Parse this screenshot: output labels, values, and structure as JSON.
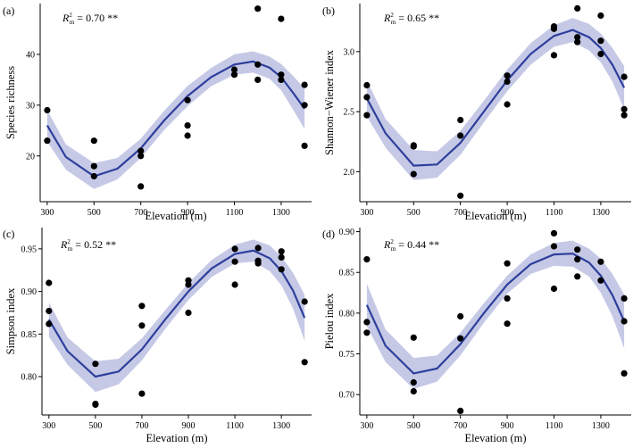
{
  "chart_data": [
    {
      "type": "scatter",
      "panel": "(a)",
      "stat": {
        "symbol": "R",
        "sup": "2",
        "sub": "m",
        "text": " = 0.70 **"
      },
      "xlabel": "Elevation (m)",
      "ylabel": "Species richness",
      "xlim": [
        270,
        1430
      ],
      "ylim": [
        11,
        50
      ],
      "xticks": [
        300,
        500,
        700,
        900,
        1100,
        1300
      ],
      "yticks": [
        20,
        30,
        40
      ],
      "points": [
        [
          300,
          29
        ],
        [
          300,
          23
        ],
        [
          500,
          23
        ],
        [
          500,
          18
        ],
        [
          500,
          16
        ],
        [
          700,
          21
        ],
        [
          700,
          20
        ],
        [
          700,
          14
        ],
        [
          900,
          31
        ],
        [
          900,
          26
        ],
        [
          900,
          24
        ],
        [
          1100,
          37
        ],
        [
          1100,
          36
        ],
        [
          1200,
          49
        ],
        [
          1200,
          38
        ],
        [
          1200,
          35
        ],
        [
          1300,
          47
        ],
        [
          1300,
          36
        ],
        [
          1300,
          35
        ],
        [
          1400,
          34
        ],
        [
          1400,
          30
        ],
        [
          1400,
          22
        ]
      ],
      "fit": [
        [
          300,
          26.0
        ],
        [
          380,
          19.8
        ],
        [
          500,
          16.0
        ],
        [
          600,
          17.5
        ],
        [
          700,
          21.5
        ],
        [
          800,
          27
        ],
        [
          900,
          31.8
        ],
        [
          1000,
          35.5
        ],
        [
          1100,
          38
        ],
        [
          1180,
          38.6
        ],
        [
          1250,
          37.4
        ],
        [
          1300,
          35.5
        ],
        [
          1350,
          32.5
        ],
        [
          1400,
          29.3
        ]
      ],
      "band_upper": [
        [
          300,
          29.0
        ],
        [
          380,
          22.3
        ],
        [
          500,
          18.6
        ],
        [
          600,
          19.6
        ],
        [
          700,
          23.4
        ],
        [
          800,
          28.9
        ],
        [
          900,
          33.8
        ],
        [
          1000,
          37.3
        ],
        [
          1100,
          40
        ],
        [
          1180,
          40.6
        ],
        [
          1250,
          39.6
        ],
        [
          1300,
          38.1
        ],
        [
          1350,
          35.8
        ],
        [
          1400,
          33.3
        ]
      ],
      "band_lower": [
        [
          300,
          22.8
        ],
        [
          380,
          17.3
        ],
        [
          500,
          13.5
        ],
        [
          600,
          15.4
        ],
        [
          700,
          19.6
        ],
        [
          800,
          25.1
        ],
        [
          900,
          29.8
        ],
        [
          1000,
          33.7
        ],
        [
          1100,
          36
        ],
        [
          1180,
          36.4
        ],
        [
          1250,
          35.2
        ],
        [
          1300,
          32.9
        ],
        [
          1350,
          29.2
        ],
        [
          1400,
          25.3
        ]
      ]
    },
    {
      "type": "scatter",
      "panel": "(b)",
      "stat": {
        "symbol": "R",
        "sup": "2",
        "sub": "m",
        "text": " = 0.65 **"
      },
      "xlabel": "Elevation (m)",
      "ylabel": "Shannon−Wiener index",
      "xlim": [
        270,
        1430
      ],
      "ylim": [
        1.75,
        3.4
      ],
      "xticks": [
        300,
        500,
        700,
        900,
        1100,
        1300
      ],
      "yticks": [
        2.0,
        2.5,
        3.0
      ],
      "ytick_labels": [
        "2.0",
        "2.5",
        "3.0"
      ],
      "points": [
        [
          300,
          2.72
        ],
        [
          300,
          2.62
        ],
        [
          300,
          2.47
        ],
        [
          500,
          2.22
        ],
        [
          500,
          2.21
        ],
        [
          500,
          1.98
        ],
        [
          700,
          2.43
        ],
        [
          700,
          2.3
        ],
        [
          700,
          1.8
        ],
        [
          900,
          2.8
        ],
        [
          900,
          2.75
        ],
        [
          900,
          2.56
        ],
        [
          1100,
          3.21
        ],
        [
          1100,
          3.19
        ],
        [
          1100,
          2.97
        ],
        [
          1200,
          3.36
        ],
        [
          1200,
          3.12
        ],
        [
          1200,
          3.08
        ],
        [
          1300,
          3.3
        ],
        [
          1300,
          3.09
        ],
        [
          1300,
          2.98
        ],
        [
          1400,
          2.79
        ],
        [
          1400,
          2.52
        ],
        [
          1400,
          2.47
        ]
      ],
      "fit": [
        [
          300,
          2.61
        ],
        [
          380,
          2.32
        ],
        [
          500,
          2.05
        ],
        [
          600,
          2.06
        ],
        [
          700,
          2.24
        ],
        [
          800,
          2.5
        ],
        [
          900,
          2.76
        ],
        [
          1000,
          2.98
        ],
        [
          1100,
          3.13
        ],
        [
          1180,
          3.18
        ],
        [
          1250,
          3.12
        ],
        [
          1300,
          3.03
        ],
        [
          1350,
          2.89
        ],
        [
          1400,
          2.7
        ]
      ],
      "band_upper": [
        [
          300,
          2.76
        ],
        [
          380,
          2.44
        ],
        [
          500,
          2.18
        ],
        [
          600,
          2.17
        ],
        [
          700,
          2.34
        ],
        [
          800,
          2.59
        ],
        [
          900,
          2.85
        ],
        [
          1000,
          3.07
        ],
        [
          1100,
          3.22
        ],
        [
          1180,
          3.28
        ],
        [
          1250,
          3.23
        ],
        [
          1300,
          3.15
        ],
        [
          1350,
          3.03
        ],
        [
          1400,
          2.88
        ]
      ],
      "band_lower": [
        [
          300,
          2.46
        ],
        [
          380,
          2.2
        ],
        [
          500,
          1.93
        ],
        [
          600,
          1.95
        ],
        [
          700,
          2.14
        ],
        [
          800,
          2.41
        ],
        [
          900,
          2.67
        ],
        [
          1000,
          2.89
        ],
        [
          1100,
          3.04
        ],
        [
          1180,
          3.08
        ],
        [
          1250,
          3.01
        ],
        [
          1300,
          2.91
        ],
        [
          1350,
          2.75
        ],
        [
          1400,
          2.52
        ]
      ]
    },
    {
      "type": "scatter",
      "panel": "(c)",
      "stat": {
        "symbol": "R",
        "sup": "2",
        "sub": "m",
        "text": " = 0.52 **"
      },
      "xlabel": "Elevation (m)",
      "ylabel": "Simpson index",
      "xlim": [
        270,
        1430
      ],
      "ylim": [
        0.755,
        0.975
      ],
      "xticks": [
        300,
        500,
        700,
        900,
        1100,
        1300
      ],
      "yticks": [
        0.8,
        0.85,
        0.9,
        0.95
      ],
      "ytick_labels": [
        "0.80",
        "0.85",
        "0.90",
        "0.95"
      ],
      "points": [
        [
          300,
          0.91
        ],
        [
          300,
          0.877
        ],
        [
          300,
          0.862
        ],
        [
          500,
          0.815
        ],
        [
          500,
          0.768
        ],
        [
          500,
          0.767
        ],
        [
          700,
          0.883
        ],
        [
          700,
          0.86
        ],
        [
          700,
          0.78
        ],
        [
          900,
          0.913
        ],
        [
          900,
          0.908
        ],
        [
          900,
          0.875
        ],
        [
          1100,
          0.95
        ],
        [
          1100,
          0.935
        ],
        [
          1100,
          0.908
        ],
        [
          1200,
          0.951
        ],
        [
          1200,
          0.936
        ],
        [
          1200,
          0.933
        ],
        [
          1300,
          0.947
        ],
        [
          1300,
          0.94
        ],
        [
          1300,
          0.926
        ],
        [
          1400,
          0.888
        ],
        [
          1400,
          0.817
        ]
      ],
      "fit": [
        [
          300,
          0.867
        ],
        [
          380,
          0.83
        ],
        [
          500,
          0.8
        ],
        [
          600,
          0.806
        ],
        [
          700,
          0.832
        ],
        [
          800,
          0.867
        ],
        [
          900,
          0.9
        ],
        [
          1000,
          0.927
        ],
        [
          1100,
          0.944
        ],
        [
          1180,
          0.948
        ],
        [
          1250,
          0.939
        ],
        [
          1300,
          0.924
        ],
        [
          1350,
          0.901
        ],
        [
          1400,
          0.869
        ]
      ],
      "band_upper": [
        [
          300,
          0.887
        ],
        [
          380,
          0.846
        ],
        [
          500,
          0.818
        ],
        [
          600,
          0.821
        ],
        [
          700,
          0.845
        ],
        [
          800,
          0.878
        ],
        [
          900,
          0.91
        ],
        [
          1000,
          0.937
        ],
        [
          1100,
          0.955
        ],
        [
          1180,
          0.961
        ],
        [
          1250,
          0.954
        ],
        [
          1300,
          0.941
        ],
        [
          1350,
          0.922
        ],
        [
          1400,
          0.896
        ]
      ],
      "band_lower": [
        [
          300,
          0.847
        ],
        [
          380,
          0.814
        ],
        [
          500,
          0.782
        ],
        [
          600,
          0.791
        ],
        [
          700,
          0.819
        ],
        [
          800,
          0.856
        ],
        [
          900,
          0.89
        ],
        [
          1000,
          0.917
        ],
        [
          1100,
          0.933
        ],
        [
          1180,
          0.935
        ],
        [
          1250,
          0.924
        ],
        [
          1300,
          0.907
        ],
        [
          1350,
          0.88
        ],
        [
          1400,
          0.842
        ]
      ]
    },
    {
      "type": "scatter",
      "panel": "(d)",
      "stat": {
        "symbol": "R",
        "sup": "2",
        "sub": "m",
        "text": " = 0.44 **"
      },
      "xlabel": "Elevation (m)",
      "ylabel": "Pielou index",
      "xlim": [
        270,
        1430
      ],
      "ylim": [
        0.675,
        0.905
      ],
      "xticks": [
        300,
        500,
        700,
        900,
        1100,
        1300
      ],
      "yticks": [
        0.7,
        0.75,
        0.8,
        0.85,
        0.9
      ],
      "ytick_labels": [
        "0.70",
        "0.75",
        "0.80",
        "0.85",
        "0.90"
      ],
      "points": [
        [
          300,
          0.866
        ],
        [
          300,
          0.789
        ],
        [
          300,
          0.776
        ],
        [
          500,
          0.77
        ],
        [
          500,
          0.715
        ],
        [
          500,
          0.704
        ],
        [
          700,
          0.796
        ],
        [
          700,
          0.769
        ],
        [
          700,
          0.68
        ],
        [
          900,
          0.861
        ],
        [
          900,
          0.818
        ],
        [
          900,
          0.787
        ],
        [
          1100,
          0.898
        ],
        [
          1100,
          0.882
        ],
        [
          1100,
          0.83
        ],
        [
          1200,
          0.878
        ],
        [
          1200,
          0.866
        ],
        [
          1200,
          0.845
        ],
        [
          1300,
          0.863
        ],
        [
          1300,
          0.84
        ],
        [
          1400,
          0.818
        ],
        [
          1400,
          0.79
        ],
        [
          1400,
          0.726
        ]
      ],
      "fit": [
        [
          300,
          0.81
        ],
        [
          380,
          0.76
        ],
        [
          500,
          0.726
        ],
        [
          600,
          0.732
        ],
        [
          700,
          0.762
        ],
        [
          800,
          0.8
        ],
        [
          900,
          0.835
        ],
        [
          1000,
          0.86
        ],
        [
          1100,
          0.872
        ],
        [
          1180,
          0.873
        ],
        [
          1250,
          0.862
        ],
        [
          1300,
          0.846
        ],
        [
          1350,
          0.822
        ],
        [
          1400,
          0.79
        ]
      ],
      "band_upper": [
        [
          300,
          0.836
        ],
        [
          380,
          0.78
        ],
        [
          500,
          0.745
        ],
        [
          600,
          0.748
        ],
        [
          700,
          0.776
        ],
        [
          800,
          0.812
        ],
        [
          900,
          0.846
        ],
        [
          1000,
          0.872
        ],
        [
          1100,
          0.886
        ],
        [
          1180,
          0.889
        ],
        [
          1250,
          0.879
        ],
        [
          1300,
          0.867
        ],
        [
          1350,
          0.848
        ],
        [
          1400,
          0.823
        ]
      ],
      "band_lower": [
        [
          300,
          0.784
        ],
        [
          380,
          0.74
        ],
        [
          500,
          0.707
        ],
        [
          600,
          0.716
        ],
        [
          700,
          0.748
        ],
        [
          800,
          0.788
        ],
        [
          900,
          0.824
        ],
        [
          1000,
          0.848
        ],
        [
          1100,
          0.858
        ],
        [
          1180,
          0.857
        ],
        [
          1250,
          0.845
        ],
        [
          1300,
          0.825
        ],
        [
          1350,
          0.796
        ],
        [
          1400,
          0.757
        ]
      ]
    }
  ]
}
